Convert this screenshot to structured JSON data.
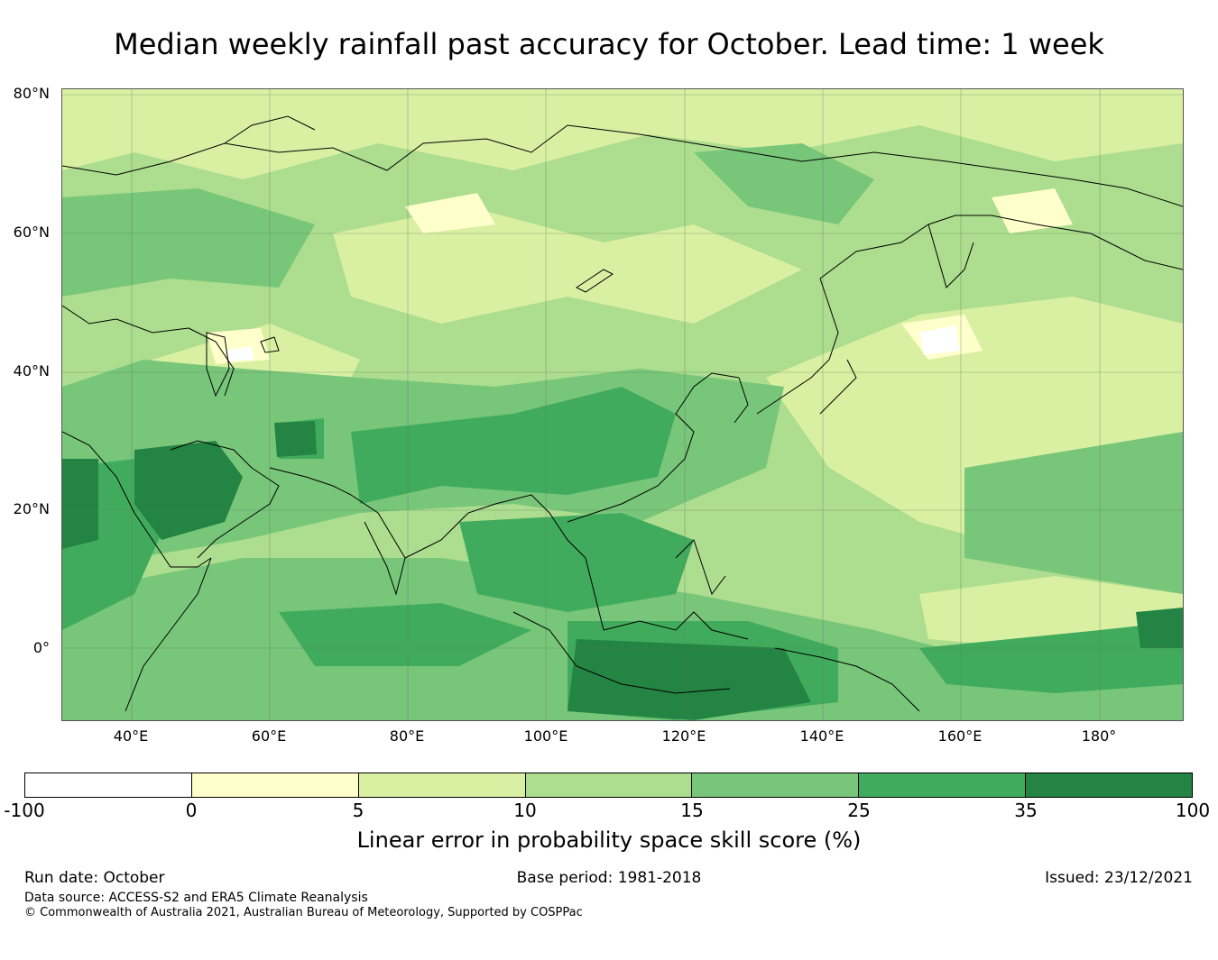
{
  "title": "Median weekly rainfall past accuracy for October. Lead time: 1 week",
  "map": {
    "lat_labels": [
      "80°N",
      "60°N",
      "40°N",
      "20°N",
      "0°"
    ],
    "lon_labels": [
      "40°E",
      "60°E",
      "80°E",
      "100°E",
      "120°E",
      "140°E",
      "160°E",
      "180°"
    ],
    "lon_range": [
      30,
      192
    ],
    "lat_range": [
      -10,
      81
    ]
  },
  "colorbar": {
    "label": "Linear error in probability space skill score (%)",
    "ticks": [
      "-100",
      "0",
      "5",
      "10",
      "15",
      "25",
      "35",
      "100"
    ],
    "colors": [
      "#ffffff",
      "#ffffcc",
      "#d9f0a3",
      "#addd8e",
      "#78c679",
      "#41ab5d",
      "#238443"
    ]
  },
  "footer": {
    "run_date": "Run date: October",
    "base_period": "Base period: 1981-2018",
    "issued": "Issued: 23/12/2021",
    "data_source": "Data source: ACCESS-S2 and ERA5 Climate Reanalysis",
    "copyright": "© Commonwealth of Australia 2021, Australian Bureau of Meteorology, Supported by COSPPac"
  }
}
